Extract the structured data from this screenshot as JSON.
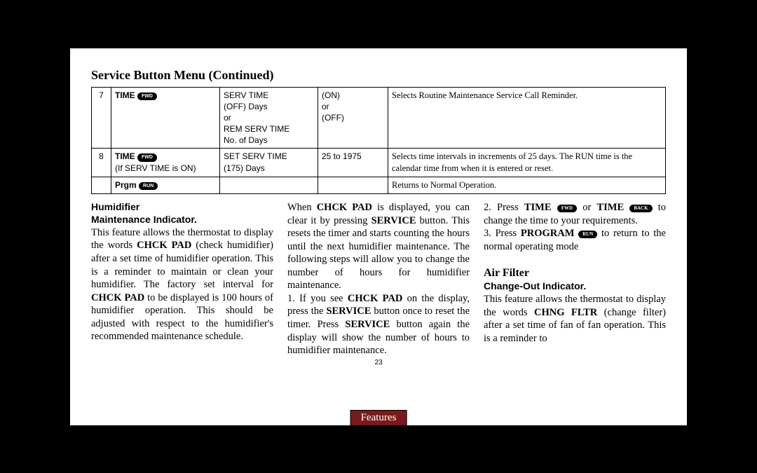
{
  "heading": "Service Button Menu (Continued)",
  "table": {
    "rows": [
      {
        "num": "7",
        "press": {
          "label": "TIME",
          "pill": "FWD",
          "sub": ""
        },
        "show": "SERV TIME\n(OFF) Days\nor\nREM SERV TIME\nNo. of Days",
        "avail": "(ON)\nor\n(OFF)",
        "desc": "Selects Routine Maintenance Service Call Reminder."
      },
      {
        "num": "8",
        "press": {
          "label": "TIME",
          "pill": "FWD",
          "sub": "(If SERV TIME is ON)"
        },
        "show": "SET SERV TIME\n(175) Days",
        "avail": "25 to 1975",
        "desc": "Selects time intervals in increments of 25 days. The RUN time is the calendar time from when it is entered or reset."
      },
      {
        "num": "",
        "press": {
          "label": "Prgm",
          "pill": "RUN",
          "sub": ""
        },
        "show": "",
        "avail": "",
        "desc": "Returns to Normal Operation."
      }
    ]
  },
  "pills": {
    "fwd": "FWD",
    "run": "RUN",
    "back": "BACK"
  },
  "body": {
    "h1": "Humidifier",
    "h2": "Maintenance Indicator.",
    "p1a": "This feature allows the thermostat to display the words ",
    "p1b": "CHCK PAD",
    "p1c": " (check humidifier) after a set time of humidifier operation. This is a reminder to maintain or clean your humidifier. The factory set interval for ",
    "p1d": "CHCK PAD",
    "p1e": " to be displayed is 100 hours of humidifier operation. This should be adjusted with respect to the humidifier's recommended mainte­nance schedule.",
    "p2a": "When ",
    "p2b": "CHCK PAD",
    "p2c": " is displayed, you can clear it by pressing ",
    "p2d": "SERVICE",
    "p2e": " button. This resets the timer and starts counting the hours until the next humidifier maintenance. The following steps will allow you to change the number of hours for humidifier maintenance.",
    "p3a": "1. If you see ",
    "p3b": "CHCK PAD",
    "p3c": " on the display, press the ",
    "p3d": "SERVICE",
    "p3e": " button once to reset the timer.  Press ",
    "p3f": "SER­VICE",
    "p3g": " button again the display will show the number of hours to humidi­fier maintenance.",
    "p4a": "2. Press ",
    "p4b": "TIME",
    "p4c": " or ",
    "p4d": "TIME",
    "p4e": " to change the time to your require­ments.",
    "p5a": "3. Press ",
    "p5b": "PROGRAM",
    "p5c": " to return to the normal operating mode",
    "h3": "Air Filter",
    "h4": "Change-Out Indicator.",
    "p6a": "This feature allows the thermostat to display the words ",
    "p6b": "CHNG FLTR",
    "p6c": " (change filter) after a set time of fan of fan operation. This is a reminder to"
  },
  "pagenum": "23",
  "tab": "Features"
}
